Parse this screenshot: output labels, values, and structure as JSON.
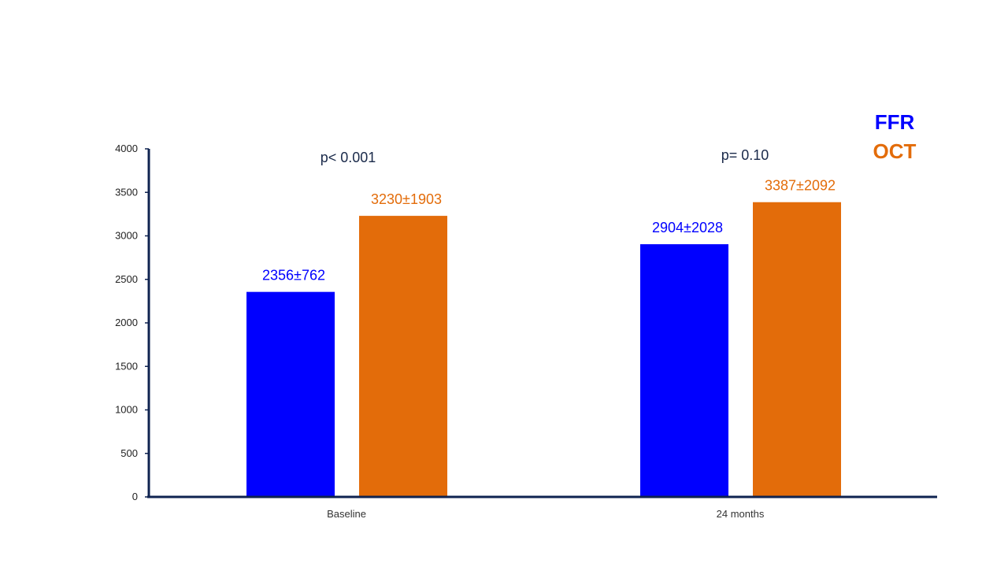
{
  "chart_data": {
    "type": "bar",
    "categories": [
      "Baseline",
      "24 months"
    ],
    "series": [
      {
        "name": "FFR",
        "color": "#0000FF",
        "values": [
          2356,
          2904
        ],
        "labels": [
          "2356±762",
          "2904±2028"
        ]
      },
      {
        "name": "OCT",
        "color": "#E36C0A",
        "values": [
          3230,
          3387
        ],
        "labels": [
          "3230±1903",
          "3387±2092"
        ]
      }
    ],
    "annotations": [
      "p< 0.001",
      "p= 0.10"
    ],
    "ylim": [
      0,
      4000
    ],
    "yticks": [
      0,
      500,
      1000,
      1500,
      2000,
      2500,
      3000,
      3500,
      4000
    ],
    "grid": false,
    "legend_position": "top-right",
    "axis_color": "#0F2350",
    "annotation_color": "#1A2A4A"
  }
}
